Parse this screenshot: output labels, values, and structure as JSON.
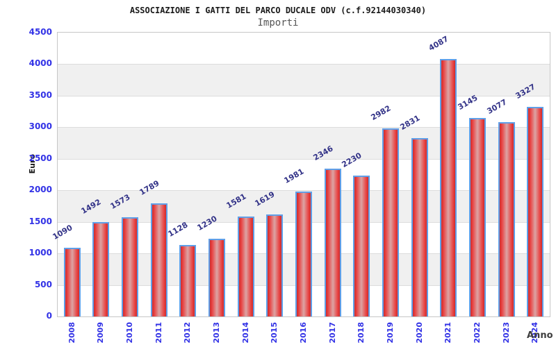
{
  "header": {
    "title": "ASSOCIAZIONE I GATTI DEL PARCO DUCALE ODV (c.f.92144030340)",
    "subtitle": "Importi"
  },
  "chart_data": {
    "type": "bar",
    "title": "ASSOCIAZIONE I GATTI DEL PARCO DUCALE ODV (c.f.92144030340)",
    "subtitle": "Importi",
    "xlabel": "Anno",
    "ylabel": "Euro",
    "categories": [
      "2008",
      "2009",
      "2010",
      "2011",
      "2012",
      "2013",
      "2014",
      "2015",
      "2016",
      "2017",
      "2018",
      "2019",
      "2020",
      "2021",
      "2022",
      "2023",
      "2024"
    ],
    "values": [
      1090,
      1492,
      1573,
      1789,
      1128,
      1230,
      1581,
      1619,
      1981,
      2346,
      2230,
      2982,
      2831,
      4087,
      3145,
      3077,
      3327
    ],
    "ylim": [
      0,
      4500
    ],
    "ytick_step": 500,
    "grid": true,
    "band_alternate": true,
    "legend": "none"
  },
  "colors": {
    "bar_border": "#5f9fe8",
    "bar_red_edge": "#cf2b2b",
    "bar_red_center": "#dca4a4",
    "tick_label_blue": "#3232e6",
    "value_label_navy": "#333388",
    "band_gray": "#f0f0f0",
    "plot_border": "#c6c6c6",
    "subtitle_gray": "#555555"
  }
}
